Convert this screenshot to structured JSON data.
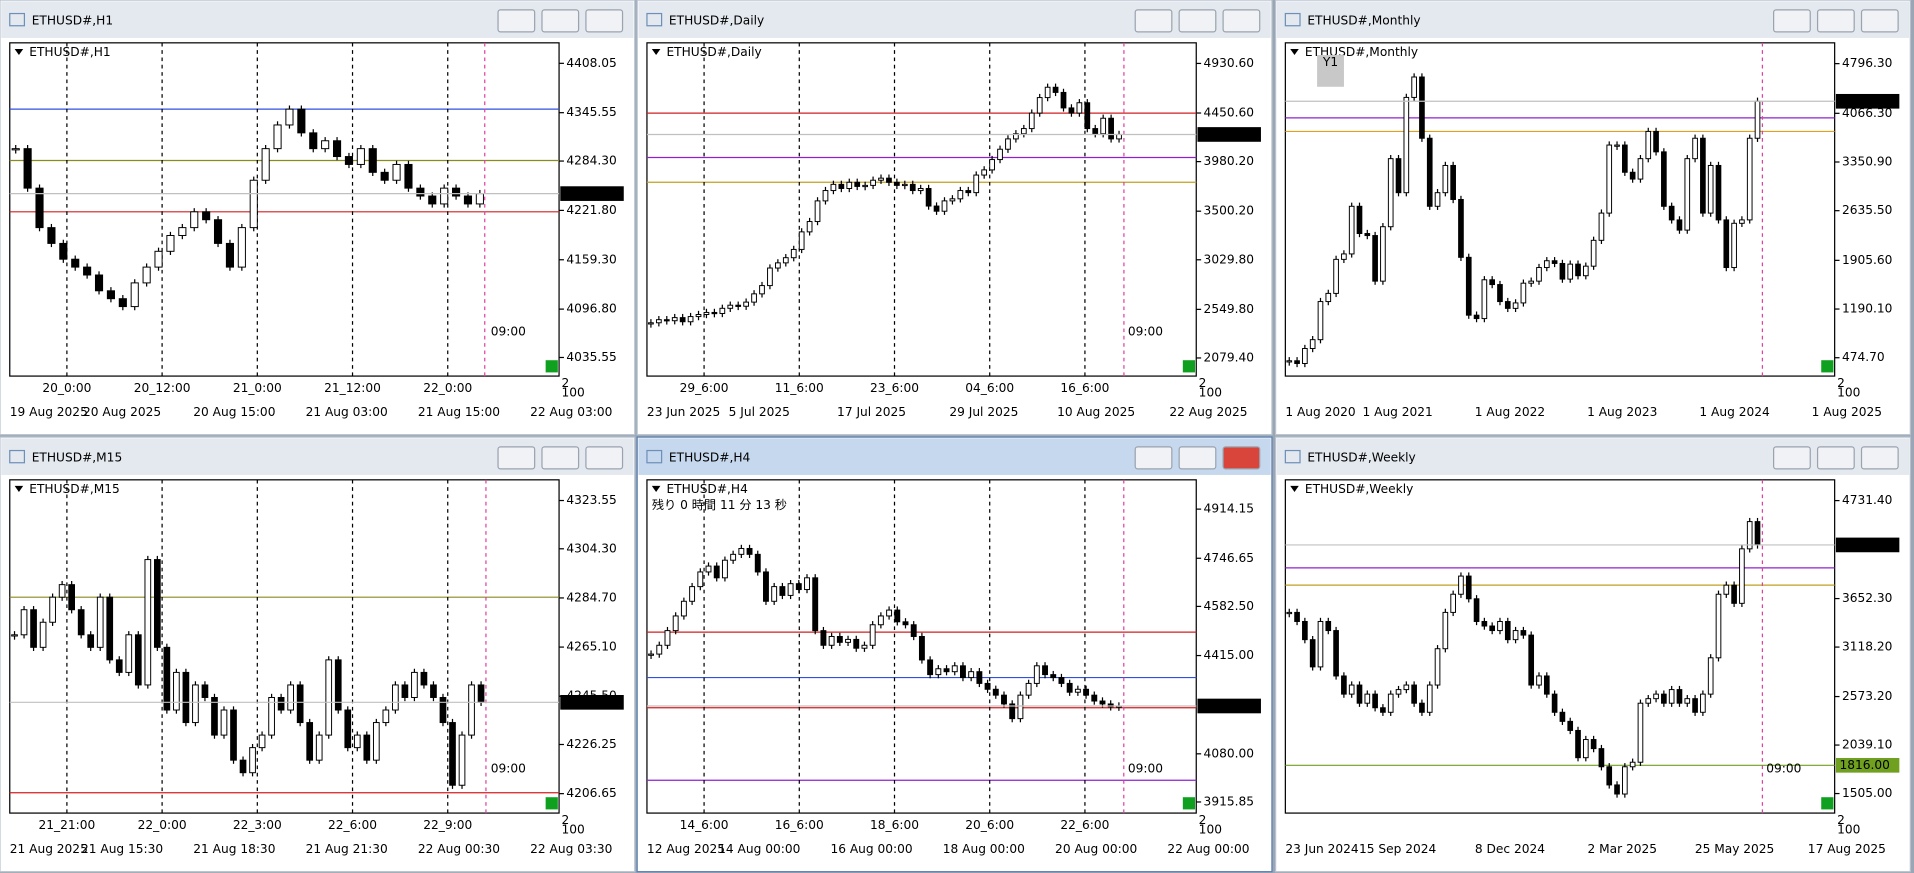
{
  "corner_labels": [
    "2",
    "100"
  ],
  "windows": [
    {
      "title": "ETHUSD#,H1",
      "current": 4243.07,
      "time_label": "09:00",
      "ylim": [
        4012,
        4434
      ],
      "yticks": [
        {
          "value": 4408.05,
          "label": "4408.05"
        },
        {
          "value": 4345.55,
          "label": "4345.55"
        },
        {
          "value": 4284.3,
          "label": "4284.30"
        },
        {
          "value": 4221.8,
          "label": "4221.80"
        },
        {
          "value": 4159.3,
          "label": "4159.30"
        },
        {
          "value": 4096.8,
          "label": "4096.80"
        },
        {
          "value": 4035.55,
          "label": "4035.55"
        }
      ],
      "separators": [
        "20_0:00",
        "20_12:00",
        "21_0:00",
        "21_12:00",
        "22_0:00"
      ],
      "dates": [
        "19 Aug 2025",
        "20 Aug 2025",
        "20 Aug 15:00",
        "21 Aug 03:00",
        "21 Aug 15:00",
        "22 Aug 03:00"
      ],
      "levels": [
        {
          "value": 4350,
          "color": "#3050e0"
        },
        {
          "value": 4285,
          "color": "#8a8a20"
        },
        {
          "value": 4220,
          "color": "#d02020"
        }
      ],
      "closes": [
        4300,
        4250,
        4200,
        4180,
        4160,
        4150,
        4140,
        4120,
        4110,
        4100,
        4130,
        4150,
        4170,
        4190,
        4200,
        4220,
        4210,
        4180,
        4150,
        4200,
        4260,
        4300,
        4330,
        4350,
        4320,
        4300,
        4310,
        4290,
        4280,
        4300,
        4270,
        4260,
        4280,
        4250,
        4240,
        4230,
        4250,
        4240,
        4230,
        4243.07
      ]
    },
    {
      "title": "ETHUSD#,Daily",
      "current": 4243.07,
      "time_label": "09:00",
      "ylim": [
        1904,
        5130
      ],
      "yticks": [
        {
          "value": 4930.6,
          "label": "4930.60"
        },
        {
          "value": 4450.6,
          "label": "4450.60"
        },
        {
          "value": 3980.2,
          "label": "3980.20"
        },
        {
          "value": 3500.2,
          "label": "3500.20"
        },
        {
          "value": 3029.8,
          "label": "3029.80"
        },
        {
          "value": 2549.8,
          "label": "2549.80"
        },
        {
          "value": 2079.4,
          "label": "2079.40"
        }
      ],
      "separators": [
        "29_6:00",
        "11_6:00",
        "23_6:00",
        "04_6:00",
        "16_6:00"
      ],
      "dates": [
        "23 Jun 2025",
        "5 Jul 2025",
        "17 Jul 2025",
        "29 Jul 2025",
        "10 Aug 2025",
        "22 Aug 2025"
      ],
      "levels": [
        {
          "value": 4450,
          "color": "#d02020"
        },
        {
          "value": 4020,
          "color": "#9020d0"
        },
        {
          "value": 3780,
          "color": "#c0a020"
        }
      ],
      "closes": [
        2420,
        2450,
        2440,
        2470,
        2430,
        2480,
        2500,
        2520,
        2510,
        2560,
        2590,
        2580,
        2620,
        2700,
        2780,
        2950,
        3000,
        3050,
        3130,
        3300,
        3400,
        3600,
        3700,
        3760,
        3720,
        3780,
        3740,
        3750,
        3800,
        3820,
        3780,
        3750,
        3760,
        3700,
        3720,
        3550,
        3500,
        3600,
        3620,
        3700,
        3680,
        3850,
        3900,
        4000,
        4100,
        4200,
        4250,
        4300,
        4450,
        4600,
        4700,
        4650,
        4500,
        4450,
        4550,
        4300,
        4250,
        4400,
        4200,
        4243.07
      ]
    },
    {
      "title": "ETHUSD#,Monthly",
      "current": 4243.07,
      "marker": "Y1",
      "ylim": [
        205,
        5102
      ],
      "yticks": [
        {
          "value": 4796.3,
          "label": "4796.30"
        },
        {
          "value": 4066.3,
          "label": "4066.30"
        },
        {
          "value": 3350.9,
          "label": "3350.90"
        },
        {
          "value": 2635.5,
          "label": "2635.50"
        },
        {
          "value": 1905.6,
          "label": "1905.60"
        },
        {
          "value": 1190.1,
          "label": "1190.10"
        },
        {
          "value": 474.7,
          "label": "474.70"
        }
      ],
      "separators": [],
      "dates": [
        "1 Aug 2020",
        "1 Aug 2021",
        "1 Aug 2022",
        "1 Aug 2023",
        "1 Aug 2024",
        "1 Aug 2025"
      ],
      "levels": [
        {
          "value": 3800,
          "color": "#e0a020"
        },
        {
          "value": 4000,
          "color": "#9020d0"
        }
      ],
      "closes": [
        430,
        390,
        610,
        740,
        1300,
        1420,
        1920,
        2000,
        2700,
        2300,
        2270,
        1600,
        2400,
        3400,
        2900,
        4300,
        4600,
        3700,
        2700,
        2900,
        3300,
        2800,
        1950,
        1100,
        1050,
        1620,
        1550,
        1300,
        1200,
        1280,
        1570,
        1600,
        1800,
        1900,
        1860,
        1630,
        1850,
        1680,
        1820,
        2200,
        2600,
        3600,
        3600,
        3200,
        3100,
        3400,
        3800,
        3500,
        2700,
        2500,
        2350,
        3400,
        3700,
        2600,
        3300,
        2500,
        1800,
        2450,
        2500,
        3700,
        4243.07
      ]
    },
    {
      "title": "ETHUSD#,M15",
      "current": 4243.07,
      "time_label": "09:00",
      "ylim": [
        4198.9,
        4331.8
      ],
      "yticks": [
        {
          "value": 4323.55,
          "label": "4323.55"
        },
        {
          "value": 4304.3,
          "label": "4304.30"
        },
        {
          "value": 4284.7,
          "label": "4284.70"
        },
        {
          "value": 4265.1,
          "label": "4265.10"
        },
        {
          "value": 4245.5,
          "label": "4245.50"
        },
        {
          "value": 4226.25,
          "label": "4226.25"
        },
        {
          "value": 4206.65,
          "label": "4206.65"
        }
      ],
      "separators": [
        "21_21:00",
        "22_0:00",
        "22_3:00",
        "22_6:00",
        "22_9:00"
      ],
      "dates": [
        "21 Aug 2025",
        "21 Aug 15:30",
        "21 Aug 18:30",
        "21 Aug 21:30",
        "22 Aug 00:30",
        "22 Aug 03:30"
      ],
      "levels": [
        {
          "value": 4285,
          "color": "#8a8a20"
        },
        {
          "value": 4207,
          "color": "#d02020"
        }
      ],
      "closes": [
        4270,
        4280,
        4265,
        4275,
        4285,
        4290,
        4280,
        4270,
        4265,
        4285,
        4260,
        4255,
        4270,
        4250,
        4300,
        4265,
        4240,
        4255,
        4235,
        4250,
        4245,
        4230,
        4240,
        4220,
        4215,
        4225,
        4230,
        4245,
        4240,
        4250,
        4235,
        4220,
        4230,
        4260,
        4240,
        4225,
        4230,
        4220,
        4235,
        4240,
        4250,
        4245,
        4255,
        4250,
        4245,
        4235,
        4210,
        4230,
        4250,
        4243.07
      ]
    },
    {
      "title": "ETHUSD#,H4",
      "active": true,
      "current": 4243.07,
      "time_label": "09:00",
      "countdown": "残り 0 時間 11 分 13 秒",
      "ylim": [
        3878,
        5014
      ],
      "yticks": [
        {
          "value": 4914.15,
          "label": "4914.15"
        },
        {
          "value": 4746.65,
          "label": "4746.65"
        },
        {
          "value": 4582.5,
          "label": "4582.50"
        },
        {
          "value": 4415,
          "label": "4415.00"
        },
        {
          "value": 4080,
          "label": "4080.00"
        },
        {
          "value": 3915.85,
          "label": "3915.85"
        }
      ],
      "separators": [
        "14_6:00",
        "16_6:00",
        "18_6:00",
        "20_6:00",
        "22_6:00"
      ],
      "dates": [
        "12 Aug 2025",
        "14 Aug 00:00",
        "16 Aug 00:00",
        "18 Aug 00:00",
        "20 Aug 00:00",
        "22 Aug 00:00"
      ],
      "levels": [
        {
          "value": 4495,
          "color": "#d02020"
        },
        {
          "value": 4340,
          "color": "#3050e0"
        },
        {
          "value": 4237,
          "color": "#d02020"
        },
        {
          "value": 3990,
          "color": "#9020d0"
        }
      ],
      "closes": [
        4420,
        4450,
        4500,
        4550,
        4600,
        4650,
        4700,
        4720,
        4680,
        4740,
        4760,
        4780,
        4760,
        4700,
        4600,
        4650,
        4620,
        4660,
        4640,
        4680,
        4500,
        4450,
        4480,
        4460,
        4470,
        4440,
        4450,
        4520,
        4550,
        4570,
        4530,
        4520,
        4480,
        4400,
        4350,
        4370,
        4360,
        4380,
        4340,
        4360,
        4320,
        4300,
        4280,
        4250,
        4200,
        4280,
        4320,
        4380,
        4350,
        4340,
        4320,
        4290,
        4300,
        4280,
        4260,
        4250,
        4240,
        4243.07
      ]
    },
    {
      "title": "ETHUSD#,Weekly",
      "current": 4243.07,
      "time_label": "09:00",
      "ylim": [
        1290,
        4960
      ],
      "yticks": [
        {
          "value": 4731.4,
          "label": "4731.40"
        },
        {
          "value": 3652.3,
          "label": "3652.30"
        },
        {
          "value": 3118.2,
          "label": "3118.20"
        },
        {
          "value": 2573.2,
          "label": "2573.20"
        },
        {
          "value": 2039.1,
          "label": "2039.10"
        },
        {
          "value": 1505,
          "label": "1505.00"
        }
      ],
      "separators": [],
      "dates": [
        "23 Jun 2024",
        "15 Sep 2024",
        "8 Dec 2024",
        "2 Mar 2025",
        "25 May 2025",
        "17 Aug 2025"
      ],
      "levels": [
        {
          "value": 3990,
          "color": "#9020d0"
        },
        {
          "value": 3800,
          "color": "#c0a020"
        },
        {
          "value": 1816,
          "color": "#70a020",
          "label": "1816.00"
        }
      ],
      "closes": [
        3500,
        3400,
        3200,
        2900,
        3400,
        3300,
        2800,
        2600,
        2700,
        2500,
        2600,
        2450,
        2400,
        2600,
        2650,
        2700,
        2500,
        2400,
        2700,
        3100,
        3500,
        3700,
        3900,
        3650,
        3400,
        3350,
        3300,
        3400,
        3200,
        3300,
        3250,
        2700,
        2800,
        2600,
        2400,
        2300,
        2200,
        1900,
        2100,
        2000,
        1800,
        1600,
        1500,
        1800,
        1850,
        2500,
        2550,
        2600,
        2500,
        2650,
        2500,
        2550,
        2400,
        2600,
        3000,
        3700,
        3800,
        3600,
        4200,
        4500,
        4243.07
      ]
    }
  ]
}
